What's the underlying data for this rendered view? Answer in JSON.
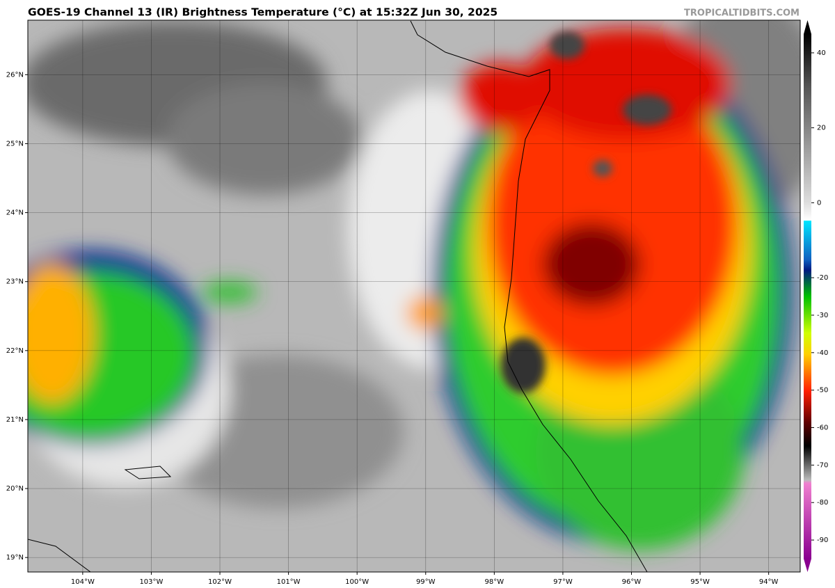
{
  "title": "GOES-19 Channel 13 (IR) Brightness Temperature (°C) at 15:32Z Jun 30, 2025",
  "watermark": "TROPICALTIDBITS.COM",
  "map": {
    "lat_lim": [
      18.79,
      26.79
    ],
    "lon_lim": [
      -104.8,
      -93.54
    ],
    "lat_ticks": [
      {
        "value": 19,
        "label": "19°N"
      },
      {
        "value": 20,
        "label": "20°N"
      },
      {
        "value": 21,
        "label": "21°N"
      },
      {
        "value": 22,
        "label": "22°N"
      },
      {
        "value": 23,
        "label": "23°N"
      },
      {
        "value": 24,
        "label": "24°N"
      },
      {
        "value": 25,
        "label": "25°N"
      },
      {
        "value": 26,
        "label": "26°N"
      }
    ],
    "lon_ticks": [
      {
        "value": -104,
        "label": "104°W"
      },
      {
        "value": -103,
        "label": "103°W"
      },
      {
        "value": -102,
        "label": "102°W"
      },
      {
        "value": -101,
        "label": "101°W"
      },
      {
        "value": -100,
        "label": "100°W"
      },
      {
        "value": -99,
        "label": "99°W"
      },
      {
        "value": -98,
        "label": "98°W"
      },
      {
        "value": -97,
        "label": "97°W"
      },
      {
        "value": -96,
        "label": "96°W"
      },
      {
        "value": -95,
        "label": "95°W"
      },
      {
        "value": -94,
        "label": "94°W"
      }
    ]
  },
  "colorbar": {
    "lim": [
      -95,
      45
    ],
    "ticks": [
      40,
      20,
      0,
      -20,
      -30,
      -40,
      -50,
      -60,
      -70,
      -80,
      -90
    ]
  }
}
